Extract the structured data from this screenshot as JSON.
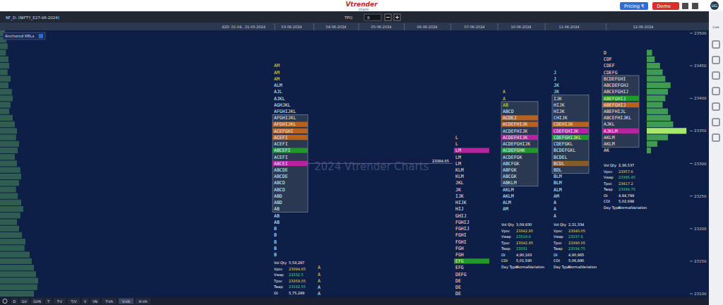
{
  "header": {
    "logo": "Vtrender",
    "logo_sub": "Charts",
    "pricing": "Pricing ₹",
    "demo": "Demo",
    "user": "UG",
    "symbol": "NF_D: (NIFTY_E27-06-2024)",
    "tpo_label": "TPO",
    "tpo_value": "8",
    "anchored": "Anchored KRLs",
    "live": "Live"
  },
  "footer": {
    "buttons": [
      "D",
      "GV",
      "GVN",
      "T",
      "T-V",
      "T/V",
      "V",
      "VN",
      "T-VA",
      "V-VA",
      "H-VA"
    ]
  },
  "watermark": "2024 Vtrender Charts",
  "chart_data": {
    "type": "market_profile",
    "categories": [
      "42D: 01-04...31-05-2024",
      "03-06-2024",
      "04-06-2024",
      "05-06-2024",
      "06-06-2024",
      "07-06-2024",
      "10-06-2024",
      "11-06-2024",
      "12-06-2024"
    ],
    "ylim": [
      23100,
      23500
    ],
    "yticks": [
      23100,
      23150,
      23200,
      23250,
      23300,
      23350,
      23400,
      23450,
      23500
    ],
    "grid": false,
    "tpo_size": 10,
    "composite": {
      "volume": [
        12,
        15,
        18,
        14,
        20,
        22,
        18,
        25,
        20,
        28,
        30,
        25,
        22,
        30,
        35,
        40,
        38,
        45,
        42,
        35,
        40,
        48,
        50,
        45,
        38,
        42,
        50,
        55,
        48,
        40,
        45,
        52,
        60,
        58,
        70,
        75,
        80,
        85,
        90,
        88,
        80
      ],
      "volume_lim": [
        0,
        100
      ]
    },
    "days": [
      null,
      {
        "high": 23450,
        "rows": [
          "AM",
          "AM",
          "AM",
          "ALM",
          "AJL",
          "AJKL",
          "AGHJKL",
          "AFGHIJKL",
          "AFGHIJKL",
          "AFGHIJKL",
          "ACEFGHI",
          "ACEFI",
          "ACEFI",
          "ABCEFI",
          "ACEFI",
          "ABCEI",
          "ABCDE",
          "ABCDE",
          "ABCD",
          "ABCD",
          "ABD",
          "ABD",
          "AB",
          "AB",
          "AB",
          "B",
          "B",
          "B",
          "B",
          "B"
        ],
        "va": [
          23230,
          23370
        ],
        "poc": 23300,
        "poc_label": "23384.65",
        "bands": [
          {
            "price": 23360,
            "color": "#b8621e"
          },
          {
            "price": 23350,
            "color": "#b8621e"
          },
          {
            "price": 23340,
            "color": "#b8621e"
          },
          {
            "price": 23320,
            "color": "#1f9a2a"
          }
        ],
        "stats": [
          [
            "Vol Qty",
            "5,59,287"
          ],
          [
            "Vpoc",
            "23394.65"
          ],
          [
            "Vwap",
            "23332.5"
          ],
          [
            "Tpoc",
            "23358.05"
          ],
          [
            "Twap",
            "23332.55"
          ],
          [
            "OI",
            "5,75,289"
          ]
        ]
      },
      {
        "high": 23140,
        "rows": [
          "A",
          "A",
          "A",
          "A",
          "A"
        ]
      },
      null,
      null,
      {
        "high": 23340,
        "rows": [
          "L",
          "L",
          "LM",
          "LM",
          "LM",
          "KLM",
          "KLM",
          "JKL",
          "JK",
          "IJK",
          "HIJK",
          "HIJ",
          "GHIJ",
          "FGHIJ",
          "FGHIJ",
          "FGHI",
          "FGHI",
          "FGH",
          "FGH",
          "EFG",
          "EFG",
          "DEFG",
          "DE",
          "DE",
          "DE"
        ],
        "poc": 23320,
        "bands": [
          {
            "price": 23150,
            "color": "#1f9a2a"
          }
        ]
      },
      {
        "high": 23410,
        "rows": [
          "A",
          "A",
          "AB",
          "ABCD",
          "ACDEJ",
          "ACDEFHIJK",
          "ACDEFHIJK",
          "ACDEFHIJK",
          "ACDEFGHIJK",
          "ACDEFGHK",
          "ACDEFGK",
          "ABCFGK",
          "ABFGK",
          "ABCGK",
          "ABKLM",
          "AKLM",
          "AKLM",
          "ALM",
          "AM"
        ],
        "va": [
          23270,
          23390
        ],
        "poc": 23340,
        "bands": [
          {
            "price": 23370,
            "color": "#b8621e"
          },
          {
            "price": 23360,
            "color": "#b8621e"
          },
          {
            "price": 23320,
            "color": "#1f9a2a"
          }
        ],
        "stats": [
          [
            "Vol Qty",
            "3,09,930"
          ],
          [
            "Vpoc",
            "23342.95"
          ],
          [
            "Vwap",
            "23319.9"
          ],
          [
            "Tpoc",
            "23342.95"
          ],
          [
            "Twap",
            "23331"
          ],
          [
            "OI",
            "4,90,163"
          ],
          [
            "COI",
            "5,01,590"
          ],
          [
            "Day Type",
            "NormalVariation"
          ]
        ]
      },
      {
        "high": 23440,
        "rows": [
          "J",
          "J",
          "JK",
          "JK",
          "IJK",
          "HIJK",
          "HIJK",
          "CHIJK",
          "CDEHIJK",
          "CDEFGHIJK",
          "CDEFGHIJKL",
          "CDEFGKL",
          "BCDEFGKL",
          "BCDEL",
          "BCDL",
          "BDL",
          "BLM",
          "BLM",
          "ALM",
          "AM",
          "A",
          "A",
          "A"
        ],
        "va": [
          23290,
          23400
        ],
        "poc": 23350,
        "bands": [
          {
            "price": 23360,
            "color": "#b8621e"
          },
          {
            "price": 23340,
            "color": "#1f9a2a"
          },
          {
            "price": 23300,
            "color": "#8a5a2a"
          }
        ],
        "stats": [
          [
            "Vol Qty",
            "2,31,334"
          ],
          [
            "Vpoc",
            "23340.05"
          ],
          [
            "Vwap",
            "23337.8"
          ],
          [
            "Tpoc",
            "23390.05"
          ],
          [
            "Twap",
            "23334.75"
          ],
          [
            "OI",
            "4,90,965"
          ],
          [
            "COI",
            "5,06,890"
          ],
          [
            "Day Type",
            "NormalVariation"
          ]
        ]
      },
      {
        "high": 23470,
        "rows": [
          "D",
          "CDF",
          "CDEF",
          "CDEFG",
          "BCDEFGHI",
          "ABCDEFGHJ",
          "ABCEFGHIJ",
          "ABEFGHIJ",
          "ABEFGHIJ",
          "ABEFHIJL",
          "ABCEFHIJKL",
          "AJKL",
          "AJKLM",
          "AKLM",
          "AKLM",
          "AK"
        ],
        "va": [
          23330,
          23430
        ],
        "poc": 23350,
        "bands": [
          {
            "price": 23400,
            "color": "#1f9a2a"
          },
          {
            "price": 23390,
            "color": "#b8621e"
          }
        ],
        "volume": [
          10,
          15,
          25,
          30,
          35,
          45,
          40,
          35,
          30,
          40,
          45,
          50,
          75,
          40,
          20,
          8
        ],
        "volume_lim": [
          0,
          80
        ],
        "stats": [
          [
            "Vol Qty",
            "2,36,537"
          ],
          [
            "Vpoc",
            "23357.6"
          ],
          [
            "Vwap",
            "23395.45"
          ],
          [
            "Tpoc",
            "23417.2"
          ],
          [
            "Twap",
            "23394.75"
          ],
          [
            "OI",
            "4,94,799"
          ],
          [
            "COI",
            "5,02,698"
          ],
          [
            "Day Type",
            "NormalVariation"
          ]
        ]
      }
    ]
  }
}
